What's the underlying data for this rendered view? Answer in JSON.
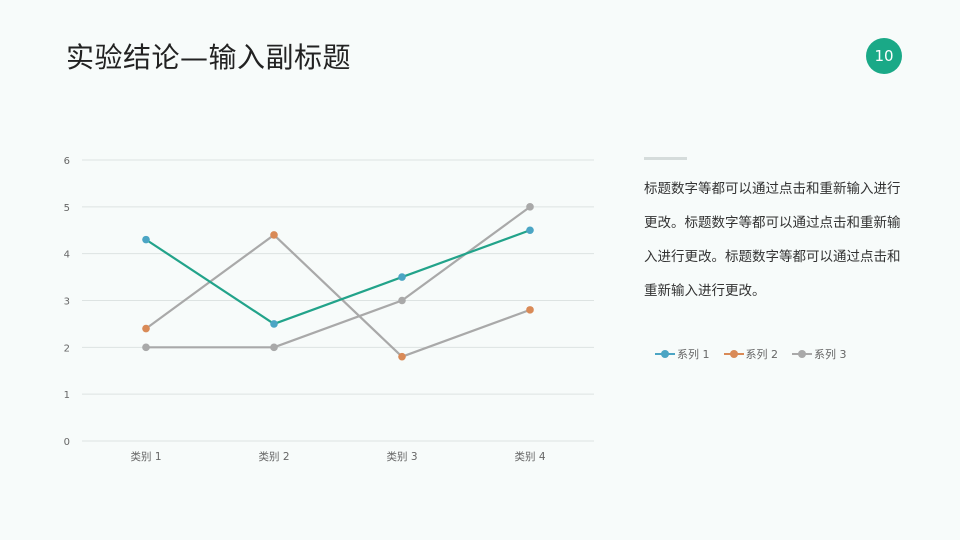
{
  "slide": {
    "title": "实验结论—输入副标题",
    "page_number": "10",
    "description": "标题数字等都可以通过点击和重新输入进行更改。标题数字等都可以通过点击和重新输入进行更改。标题数字等都可以通过点击和重新输入进行更改。"
  },
  "colors": {
    "accent": "#1aa987",
    "series1_line": "#22a38a",
    "series1_marker": "#4ba5c4",
    "series2_marker": "#d98a57",
    "series3": "#a9a9a9",
    "grid": "#dde3e2"
  },
  "chart_data": {
    "type": "line",
    "title": "",
    "xlabel": "",
    "ylabel": "",
    "categories": [
      "类别 1",
      "类别 2",
      "类别 3",
      "类别 4"
    ],
    "yticks": [
      "0",
      "1",
      "2",
      "3",
      "4",
      "5",
      "6"
    ],
    "ylim": [
      0,
      6
    ],
    "grid": true,
    "legend_position": "right",
    "series": [
      {
        "name": "系列 1",
        "values": [
          4.3,
          2.5,
          3.5,
          4.5
        ]
      },
      {
        "name": "系列 2",
        "values": [
          2.4,
          4.4,
          1.8,
          2.8
        ]
      },
      {
        "name": "系列 3",
        "values": [
          2.0,
          2.0,
          3.0,
          5.0
        ]
      }
    ]
  }
}
